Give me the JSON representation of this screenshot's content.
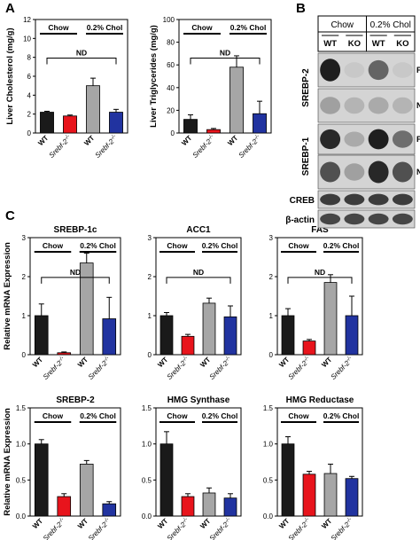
{
  "panels": {
    "A": "A",
    "B": "B",
    "C": "C"
  },
  "groups": {
    "chow": "Chow",
    "chol": "0.2% Chol"
  },
  "genotypes": {
    "wt": "WT",
    "ko_base": "Srebf-2",
    "ko_sup": "-/-"
  },
  "colors": {
    "wt_chow": "#1a1a1a",
    "ko_chow": "#e8141c",
    "wt_chol": "#a6a6a6",
    "ko_chol": "#2133a0"
  },
  "nd_label": "ND",
  "charts_a": [
    {
      "key": "chol",
      "ylabel": "Liver Cholesterol (mg/g)",
      "ylim": [
        0,
        12
      ],
      "ticks": [
        0,
        2,
        4,
        6,
        8,
        10,
        12
      ],
      "values": [
        2.2,
        1.8,
        5.0,
        2.2
      ],
      "errors": [
        0.1,
        0.1,
        0.8,
        0.3
      ],
      "nd": [
        0,
        3
      ]
    },
    {
      "key": "tg",
      "ylabel": "Liver Triglycerides (mg/g)",
      "ylim": [
        0,
        100
      ],
      "ticks": [
        0,
        20,
        40,
        60,
        80,
        100
      ],
      "values": [
        12,
        3,
        58,
        17
      ],
      "errors": [
        4,
        1,
        10,
        11
      ],
      "nd": [
        0,
        3
      ]
    }
  ],
  "chart_data": [
    {
      "type": "bar",
      "title": "",
      "ylabel": "Liver Cholesterol (mg/g)",
      "categories": [
        "WT Chow",
        "Srebf-2-/- Chow",
        "WT 0.2% Chol",
        "Srebf-2-/- 0.2% Chol"
      ],
      "values": [
        2.2,
        1.8,
        5.0,
        2.2
      ],
      "ylim": [
        0,
        12
      ]
    },
    {
      "type": "bar",
      "title": "",
      "ylabel": "Liver Triglycerides (mg/g)",
      "categories": [
        "WT Chow",
        "Srebf-2-/- Chow",
        "WT 0.2% Chol",
        "Srebf-2-/- 0.2% Chol"
      ],
      "values": [
        12,
        3,
        58,
        17
      ],
      "ylim": [
        0,
        100
      ]
    },
    {
      "type": "bar",
      "title": "SREBP-1c",
      "ylabel": "Relative mRNA Expression",
      "categories": [
        "WT Chow",
        "Srebf-2-/- Chow",
        "WT 0.2% Chol",
        "Srebf-2-/- 0.2% Chol"
      ],
      "values": [
        1.0,
        0.05,
        2.35,
        0.92
      ],
      "ylim": [
        0,
        3
      ]
    },
    {
      "type": "bar",
      "title": "ACC1",
      "ylabel": "",
      "categories": [
        "WT Chow",
        "Srebf-2-/- Chow",
        "WT 0.2% Chol",
        "Srebf-2-/- 0.2% Chol"
      ],
      "values": [
        1.0,
        0.47,
        1.32,
        0.97
      ],
      "ylim": [
        0,
        3
      ]
    },
    {
      "type": "bar",
      "title": "FAS",
      "ylabel": "",
      "categories": [
        "WT Chow",
        "Srebf-2-/- Chow",
        "WT 0.2% Chol",
        "Srebf-2-/- 0.2% Chol"
      ],
      "values": [
        1.0,
        0.35,
        1.85,
        1.0
      ],
      "ylim": [
        0,
        3
      ]
    },
    {
      "type": "bar",
      "title": "SREBP-2",
      "ylabel": "Relative mRNA Expression",
      "categories": [
        "WT Chow",
        "Srebf-2-/- Chow",
        "WT 0.2% Chol",
        "Srebf-2-/- 0.2% Chol"
      ],
      "values": [
        1.0,
        0.27,
        0.72,
        0.17
      ],
      "ylim": [
        0,
        1.5
      ]
    },
    {
      "type": "bar",
      "title": "HMG Synthase",
      "ylabel": "",
      "categories": [
        "WT Chow",
        "Srebf-2-/- Chow",
        "WT 0.2% Chol",
        "Srebf-2-/- 0.2% Chol"
      ],
      "values": [
        1.0,
        0.27,
        0.32,
        0.25
      ],
      "ylim": [
        0,
        1.5
      ]
    },
    {
      "type": "bar",
      "title": "HMG Reductase",
      "ylabel": "",
      "categories": [
        "WT Chow",
        "Srebf-2-/- Chow",
        "WT 0.2% Chol",
        "Srebf-2-/- 0.2% Chol"
      ],
      "values": [
        1.0,
        0.58,
        0.59,
        0.52
      ],
      "ylim": [
        0,
        1.5
      ]
    }
  ],
  "charts_c": [
    {
      "title": "SREBP-1c",
      "ylabel": "Relative mRNA Expression",
      "ylim": [
        0,
        3
      ],
      "ticks": [
        0,
        1,
        2,
        3
      ],
      "values": [
        1.0,
        0.05,
        2.35,
        0.92
      ],
      "errors": [
        0.3,
        0.02,
        0.25,
        0.55
      ],
      "nd": [
        0,
        3
      ]
    },
    {
      "title": "ACC1",
      "ylabel": "",
      "ylim": [
        0,
        3
      ],
      "ticks": [
        0,
        1,
        2,
        3
      ],
      "values": [
        1.0,
        0.47,
        1.32,
        0.97
      ],
      "errors": [
        0.08,
        0.05,
        0.13,
        0.28
      ],
      "nd": [
        0,
        3
      ]
    },
    {
      "title": "FAS",
      "ylabel": "",
      "ylim": [
        0,
        3
      ],
      "ticks": [
        0,
        1,
        2,
        3
      ],
      "values": [
        1.0,
        0.35,
        1.85,
        1.0
      ],
      "errors": [
        0.18,
        0.04,
        0.2,
        0.5
      ],
      "nd": [
        0,
        3
      ]
    },
    {
      "title": "SREBP-2",
      "ylabel": "Relative mRNA Expression",
      "ylim": [
        0,
        1.5
      ],
      "ticks": [
        0,
        0.5,
        1.0,
        1.5
      ],
      "values": [
        1.0,
        0.27,
        0.72,
        0.17
      ],
      "errors": [
        0.06,
        0.04,
        0.05,
        0.03
      ],
      "nd": null
    },
    {
      "title": "HMG Synthase",
      "ylabel": "",
      "ylim": [
        0,
        1.5
      ],
      "ticks": [
        0,
        0.5,
        1.0,
        1.5
      ],
      "values": [
        1.0,
        0.27,
        0.32,
        0.25
      ],
      "errors": [
        0.17,
        0.04,
        0.07,
        0.06
      ],
      "nd": null
    },
    {
      "title": "HMG Reductase",
      "ylabel": "",
      "ylim": [
        0,
        1.5
      ],
      "ticks": [
        0,
        0.5,
        1.0,
        1.5
      ],
      "values": [
        1.0,
        0.58,
        0.59,
        0.52
      ],
      "errors": [
        0.1,
        0.04,
        0.13,
        0.03
      ],
      "nd": null
    }
  ],
  "blot": {
    "header_groups": [
      "Chow",
      "0.2% Chol"
    ],
    "lanes": [
      "WT",
      "KO",
      "WT",
      "KO"
    ],
    "rows": [
      {
        "key": "s2p",
        "protein": "SREBP-2",
        "form": "P",
        "intensity": [
          0.95,
          0.1,
          0.6,
          0.1
        ]
      },
      {
        "key": "s2n",
        "protein": "",
        "form": "N",
        "intensity": [
          0.3,
          0.2,
          0.25,
          0.2
        ]
      },
      {
        "key": "s1p",
        "protein": "SREBP-1",
        "form": "P",
        "intensity": [
          0.9,
          0.25,
          0.95,
          0.55
        ]
      },
      {
        "key": "s1n",
        "protein": "",
        "form": "N",
        "intensity": [
          0.7,
          0.3,
          0.9,
          0.7
        ]
      },
      {
        "key": "creb",
        "protein": "CREB",
        "form": "",
        "intensity": [
          0.8,
          0.8,
          0.8,
          0.8
        ]
      },
      {
        "key": "actin",
        "protein": "β-actin",
        "form": "",
        "intensity": [
          0.75,
          0.75,
          0.75,
          0.75
        ]
      }
    ]
  }
}
